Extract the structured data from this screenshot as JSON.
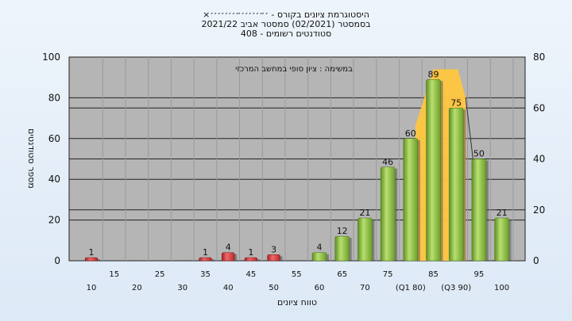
{
  "title": {
    "line1": "×היסטוגרמת ציונים בקורס - ׳״׳׳׳׳׳״׳׳׳׳׳׳׳",
    "line2": "בסמסטר  (02/2021)  סמסטר אביב 2021/22",
    "line3": "סטודנטים רשומים - 408"
  },
  "chart_data": {
    "type": "bar",
    "title": "×היסטוגרמת ציונים בקורס - ׳״׳׳׳׳׳״׳׳׳׳׳׳׳",
    "subtitle": "בסמסטר  (02/2021)  סמסטר אביב 2021/22 · סטודנטים רשומים - 408",
    "annotation": "במשימה : ציון סופי במחשב המרכזי",
    "xlabel": "טווח ציונים",
    "ylabel": "מספר סטודנטים",
    "ylim": [
      0,
      100
    ],
    "y_ticks": [
      0,
      20,
      40,
      60,
      80,
      100
    ],
    "y2lim": [
      0,
      80
    ],
    "y2_ticks": [
      0,
      20,
      40,
      60,
      80
    ],
    "x_ticks_upper": [
      "15",
      "25",
      "35",
      "45",
      "55",
      "65",
      "75",
      "85",
      "95"
    ],
    "x_ticks_lower": [
      "10",
      "20",
      "30",
      "40",
      "50",
      "60",
      "70",
      "(Q1 80)",
      "(Q3 90)",
      "100"
    ],
    "categories": [
      "10",
      "15",
      "20",
      "25",
      "30",
      "35",
      "40",
      "45",
      "50",
      "55",
      "60",
      "65",
      "70",
      "75",
      "80",
      "85",
      "90",
      "95",
      "100"
    ],
    "values": [
      1,
      0,
      0,
      0,
      0,
      1,
      4,
      1,
      3,
      0,
      4,
      12,
      21,
      46,
      60,
      89,
      75,
      50,
      21
    ],
    "data_labels": [
      "1",
      "",
      "",
      "",
      "",
      "1",
      "4",
      "1",
      "3",
      "",
      "4",
      "12",
      "21",
      "46",
      "60",
      "89",
      "75",
      "50",
      "21"
    ],
    "failing_below": 55,
    "highlight_range": [
      80,
      90
    ],
    "colors": {
      "plot_bg": "#b5b5b5",
      "fail_bar": "#d83a3a",
      "pass_bar": "#8dc63f",
      "highlight": "#ffc640"
    },
    "grid": true
  }
}
